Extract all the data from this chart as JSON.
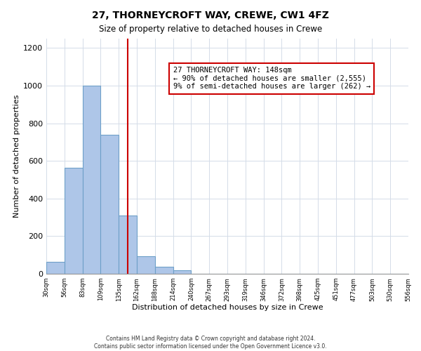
{
  "title": "27, THORNEYCROFT WAY, CREWE, CW1 4FZ",
  "subtitle": "Size of property relative to detached houses in Crewe",
  "xlabel": "Distribution of detached houses by size in Crewe",
  "ylabel": "Number of detached properties",
  "bin_labels": [
    "30sqm",
    "56sqm",
    "83sqm",
    "109sqm",
    "135sqm",
    "162sqm",
    "188sqm",
    "214sqm",
    "240sqm",
    "267sqm",
    "293sqm",
    "319sqm",
    "346sqm",
    "372sqm",
    "398sqm",
    "425sqm",
    "451sqm",
    "477sqm",
    "503sqm",
    "530sqm",
    "556sqm"
  ],
  "bar_values": [
    65,
    565,
    1000,
    740,
    310,
    95,
    38,
    20,
    0,
    0,
    0,
    0,
    0,
    0,
    0,
    0,
    0,
    0,
    0,
    0
  ],
  "bar_color": "#aec6e8",
  "bar_edge_color": "#6ea0c8",
  "property_line_color": "#cc0000",
  "annotation_line1": "27 THORNEYCROFT WAY: 148sqm",
  "annotation_line2": "← 90% of detached houses are smaller (2,555)",
  "annotation_line3": "9% of semi-detached houses are larger (262) →",
  "annotation_box_color": "#ffffff",
  "annotation_box_edge_color": "#cc0000",
  "ylim": [
    0,
    1250
  ],
  "yticks": [
    0,
    200,
    400,
    600,
    800,
    1000,
    1200
  ],
  "footer_text": "Contains HM Land Registry data © Crown copyright and database right 2024.\nContains public sector information licensed under the Open Government Licence v3.0.",
  "background_color": "#ffffff",
  "grid_color": "#d4dce8"
}
